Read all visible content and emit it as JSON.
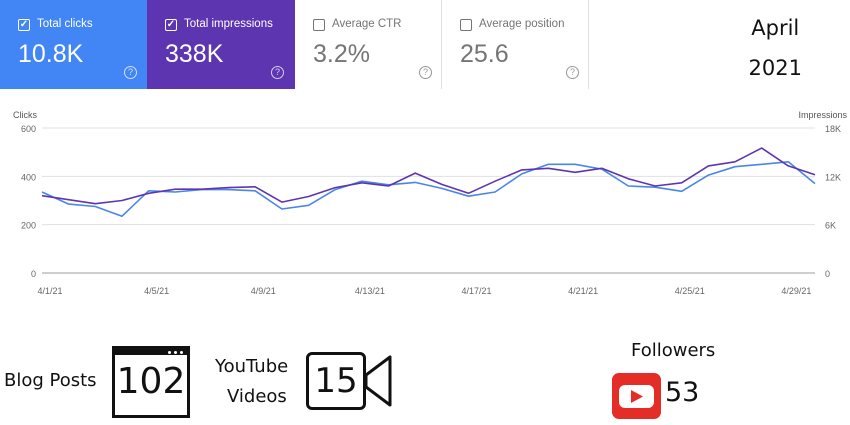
{
  "cards": [
    {
      "label": "Total clicks",
      "value": "10.8K",
      "checked": true,
      "color": "#4285f4"
    },
    {
      "label": "Total impressions",
      "value": "338K",
      "checked": true,
      "color": "#5e35b1"
    },
    {
      "label": "Average CTR",
      "value": "3.2%",
      "checked": false
    },
    {
      "label": "Average position",
      "value": "25.6",
      "checked": false
    }
  ],
  "help_icon": "question-circle-icon",
  "period": {
    "month": "April",
    "year": "2021"
  },
  "chart_data": {
    "type": "line",
    "x": [
      "4/1/21",
      "4/2/21",
      "4/3/21",
      "4/4/21",
      "4/5/21",
      "4/6/21",
      "4/7/21",
      "4/8/21",
      "4/9/21",
      "4/10/21",
      "4/11/21",
      "4/12/21",
      "4/13/21",
      "4/14/21",
      "4/15/21",
      "4/16/21",
      "4/17/21",
      "4/18/21",
      "4/19/21",
      "4/20/21",
      "4/21/21",
      "4/22/21",
      "4/23/21",
      "4/24/21",
      "4/25/21",
      "4/26/21",
      "4/27/21",
      "4/28/21",
      "4/29/21",
      "4/30/21"
    ],
    "xticks": [
      "4/1/21",
      "4/5/21",
      "4/9/21",
      "4/13/21",
      "4/17/21",
      "4/21/21",
      "4/25/21",
      "4/29/21"
    ],
    "ylabel_left": "Clicks",
    "ylabel_right": "Impressions",
    "yticks_left": [
      "0",
      "200",
      "400",
      "600"
    ],
    "yticks_right": [
      "0",
      "6K",
      "12K",
      "18K"
    ],
    "ylim_left": [
      0,
      600
    ],
    "ylim_right": [
      0,
      18000
    ],
    "grid": true,
    "series": [
      {
        "name": "Total clicks",
        "axis": "left",
        "color": "#4a86e8",
        "values": [
          335,
          285,
          275,
          235,
          340,
          335,
          345,
          345,
          340,
          265,
          280,
          345,
          380,
          365,
          375,
          350,
          318,
          335,
          410,
          450,
          450,
          430,
          360,
          355,
          338,
          405,
          440,
          450,
          460,
          370
        ]
      },
      {
        "name": "Total impressions",
        "axis": "right",
        "color": "#5e35b1",
        "values": [
          9600,
          9100,
          8600,
          9000,
          9900,
          10400,
          10400,
          10600,
          10700,
          8800,
          9500,
          10600,
          11200,
          10800,
          12400,
          11000,
          9900,
          11400,
          12800,
          13000,
          12500,
          13000,
          11700,
          10800,
          11200,
          13300,
          13800,
          15500,
          13300,
          12200
        ]
      }
    ]
  },
  "stats": {
    "blog_label": "Blog Posts",
    "blog_value": "102",
    "youtube_label_1": "YouTube",
    "youtube_label_2": "Videos",
    "youtube_value": "15",
    "followers_label": "Followers",
    "followers_value": "53"
  },
  "icons": {
    "blog": "browser-window-icon",
    "video": "video-camera-icon",
    "youtube": "youtube-icon"
  }
}
